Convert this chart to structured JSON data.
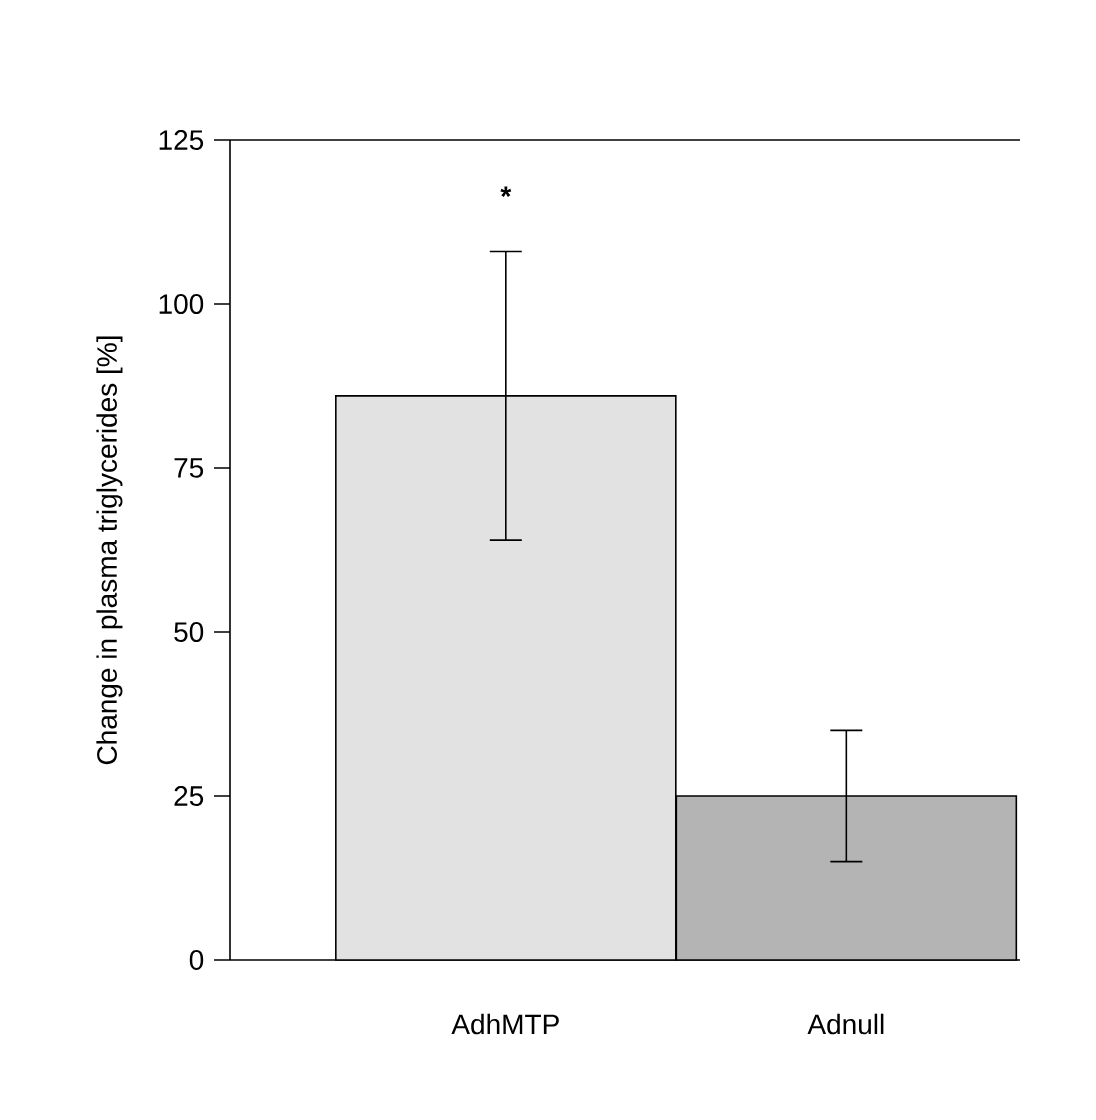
{
  "chart_data": {
    "type": "bar",
    "ylabel": "Change in plasma triglycerides [%]",
    "categories": [
      "AdhMTP",
      "Adnull"
    ],
    "values": [
      86,
      25
    ],
    "errors": [
      22,
      10
    ],
    "colors": [
      "#e2e2e2",
      "#b4b4b4"
    ],
    "ylim": [
      0,
      125
    ],
    "yticks": [
      0,
      25,
      50,
      75,
      100,
      125
    ],
    "annotations": [
      "*"
    ]
  }
}
